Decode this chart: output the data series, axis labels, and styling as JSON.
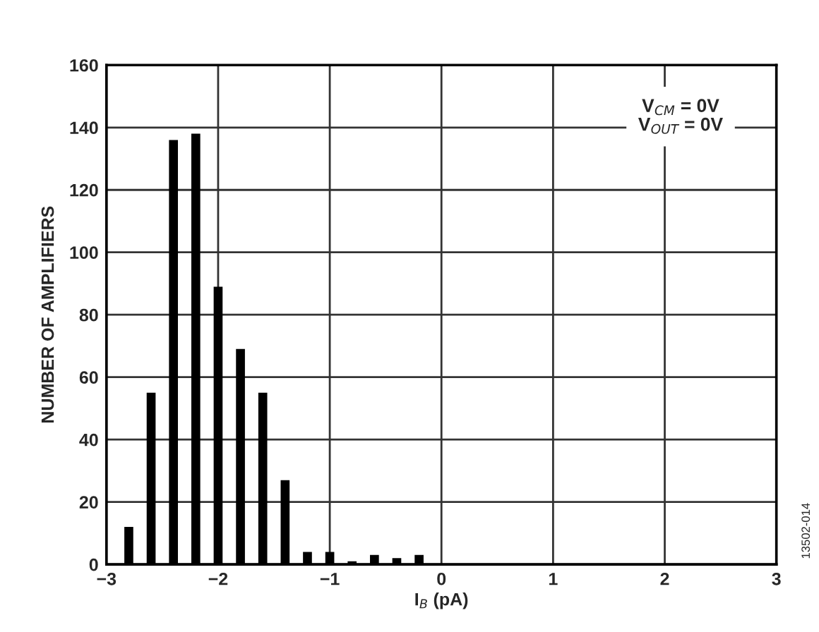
{
  "chart_data": {
    "type": "bar",
    "xlabel": "I$_{B}$ (pA)",
    "ylabel": "NUMBER OF AMPLIFIERS",
    "annotations": [
      "V$_{CM}$ = 0V\nV$_{OUT}$ = 0V",
      "13502-014"
    ],
    "x": [
      -2.8,
      -2.6,
      -2.4,
      -2.2,
      -2.0,
      -1.8,
      -1.6,
      -1.4,
      -1.2,
      -1.0,
      -0.8,
      -0.6,
      -0.4,
      -0.2
    ],
    "values": [
      12,
      55,
      136,
      138,
      89,
      69,
      55,
      27,
      4,
      4,
      1,
      3,
      2,
      3
    ],
    "color": "#000000",
    "xlim": [
      -3,
      3
    ],
    "xticks": [
      {
        "value": -3,
        "label": "−3"
      },
      {
        "value": -2,
        "label": "−2"
      },
      {
        "value": -1,
        "label": "−1"
      },
      0,
      1,
      2,
      3
    ],
    "ylim": [
      0,
      160
    ],
    "yticks": [
      0,
      20,
      40,
      60,
      80,
      100,
      120,
      140,
      160
    ],
    "grid": true
  }
}
